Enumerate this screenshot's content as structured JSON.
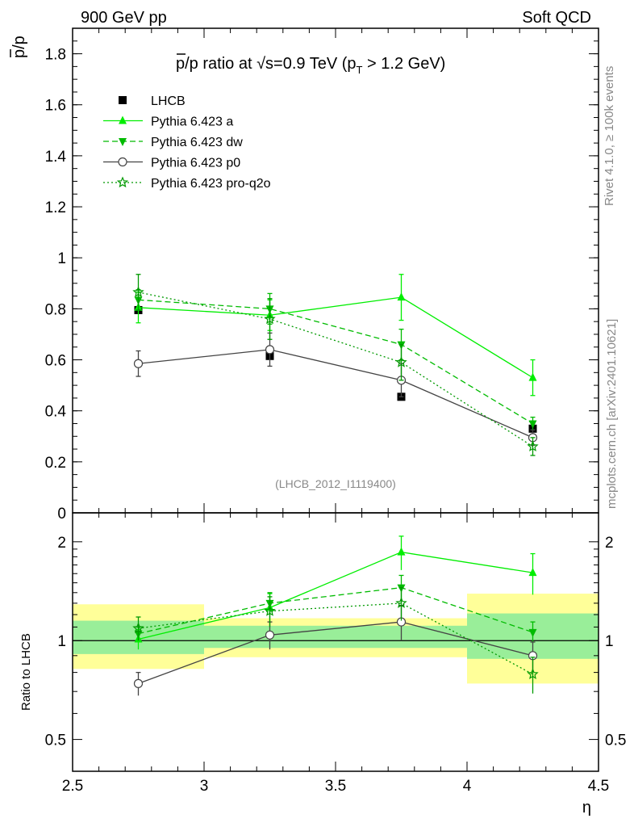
{
  "header": {
    "left": "900 GeV pp",
    "right": "Soft QCD"
  },
  "side_labels": {
    "rivet": "Rivet 4.1.0, ≥ 100k events",
    "mcplots": "mcplots.cern.ch [arXiv:2401.10621]"
  },
  "chart_data": [
    {
      "type": "line",
      "title": "p̅/p ratio at √s=0.9 TeV (p_T > 1.2 GeV)",
      "title_parts": {
        "pbar": "p",
        "rest": "/p ratio at ",
        "sqrt": "√",
        "s": "s",
        "energy": "=0.9 TeV (p",
        "sub": "T",
        "tail": " > 1.2 GeV)"
      },
      "ylabel": "p̅/p",
      "ylabel_parts": {
        "pbar": "p",
        "rest": "/p"
      },
      "xlabel": "η",
      "xlim": [
        2.5,
        4.5
      ],
      "ylim": [
        0,
        1.9
      ],
      "yticks": [
        "0",
        "0.2",
        "0.4",
        "0.6",
        "0.8",
        "1",
        "1.2",
        "1.4",
        "1.6",
        "1.8"
      ],
      "xticks": [
        "2.5",
        "3",
        "3.5",
        "4",
        "4.5"
      ],
      "watermark": "(LHCB_2012_I1119400)",
      "x": [
        2.75,
        3.25,
        3.75,
        4.25
      ],
      "series": [
        {
          "name": "LHCB",
          "color": "#000000",
          "marker": "square",
          "line": "none",
          "values": [
            0.795,
            0.615,
            0.455,
            0.33
          ]
        },
        {
          "name": "Pythia 6.423 a",
          "color": "#00ee00",
          "marker": "triangle-up",
          "line": "solid",
          "values": [
            0.805,
            0.775,
            0.845,
            0.53
          ],
          "err": [
            0.06,
            0.06,
            0.09,
            0.07
          ]
        },
        {
          "name": "Pythia 6.423 dw",
          "color": "#00bb00",
          "marker": "triangle-down",
          "line": "dashed",
          "values": [
            0.835,
            0.8,
            0.66,
            0.35
          ],
          "err": [
            0.04,
            0.06,
            0.06,
            0.025
          ]
        },
        {
          "name": "Pythia 6.423 p0",
          "color": "#444444",
          "marker": "circle-open",
          "line": "solid",
          "values": [
            0.585,
            0.64,
            0.52,
            0.295
          ],
          "err": [
            0.05,
            0.065,
            0.065,
            0.03
          ]
        },
        {
          "name": "Pythia 6.423 pro-q2o",
          "color": "#009900",
          "marker": "star-open",
          "line": "dotted",
          "values": [
            0.865,
            0.76,
            0.59,
            0.26
          ],
          "err": [
            0.07,
            0.08,
            0.07,
            0.035
          ]
        }
      ]
    },
    {
      "type": "line",
      "ylabel": "Ratio to LHCB",
      "scale": "log",
      "ylim": [
        0.4,
        2.45
      ],
      "yticks": [
        "0.5",
        "1",
        "2"
      ],
      "reference_bands": {
        "x_edges": [
          2.5,
          3.0,
          3.5,
          4.0,
          4.5
        ],
        "inner": [
          [
            0.91,
            1.15
          ],
          [
            0.95,
            1.11
          ],
          [
            0.95,
            1.11
          ],
          [
            0.88,
            1.21
          ]
        ],
        "outer": [
          [
            0.82,
            1.29
          ],
          [
            0.89,
            1.17
          ],
          [
            0.89,
            1.17
          ],
          [
            0.74,
            1.39
          ]
        ]
      },
      "x": [
        2.75,
        3.25,
        3.75,
        4.25
      ],
      "series": [
        {
          "name": "Pythia 6.423 a",
          "values": [
            1.01,
            1.26,
            1.86,
            1.61
          ],
          "err": [
            0.07,
            0.13,
            0.22,
            0.23
          ]
        },
        {
          "name": "Pythia 6.423 dw",
          "values": [
            1.05,
            1.3,
            1.45,
            1.06
          ],
          "err": [
            0.05,
            0.1,
            0.13,
            0.08
          ]
        },
        {
          "name": "Pythia 6.423 p0",
          "values": [
            0.74,
            1.04,
            1.14,
            0.9
          ],
          "err": [
            0.06,
            0.1,
            0.14,
            0.09
          ]
        },
        {
          "name": "Pythia 6.423 pro-q2o",
          "values": [
            1.09,
            1.23,
            1.3,
            0.79
          ],
          "err": [
            0.09,
            0.13,
            0.15,
            0.1
          ]
        }
      ]
    }
  ]
}
